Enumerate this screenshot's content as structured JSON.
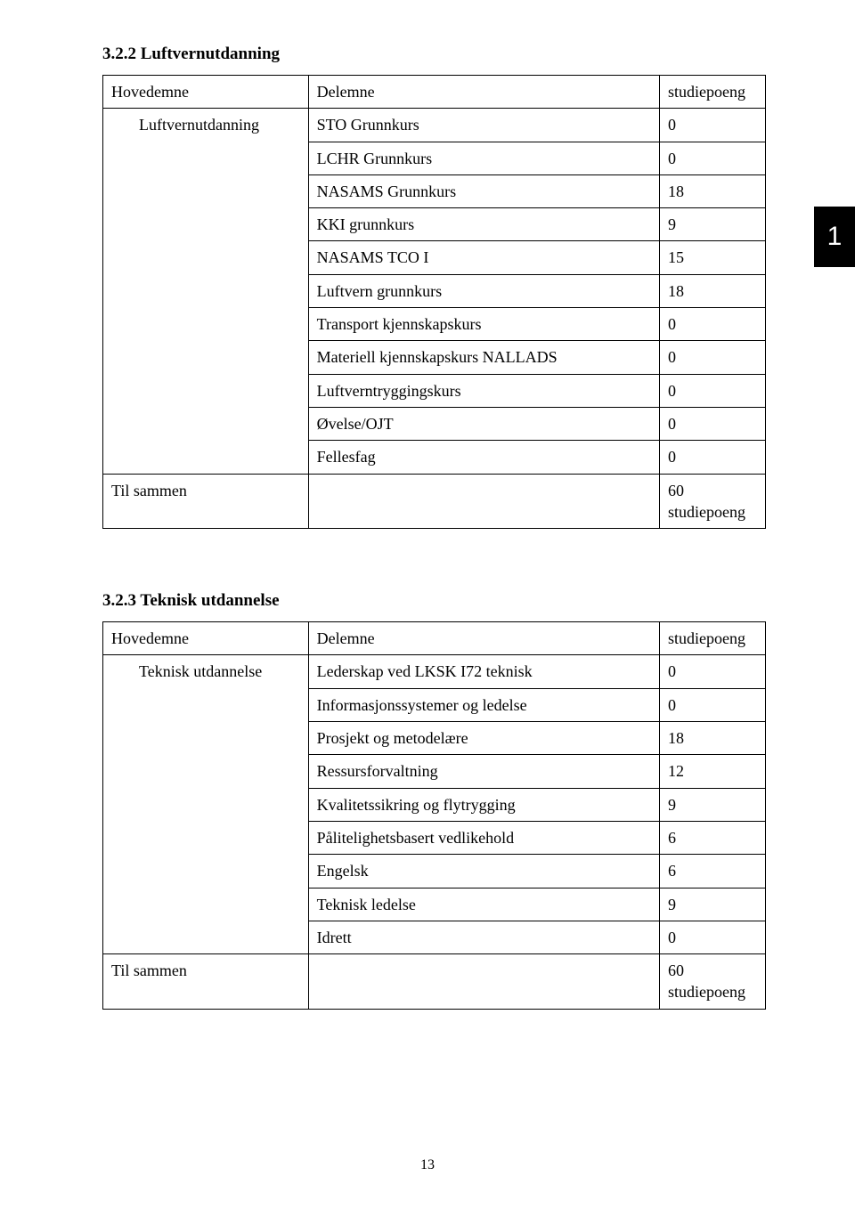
{
  "sideTab": "1",
  "pageNumber": "13",
  "section1": {
    "title": "3.2.2 Luftvernutdanning",
    "headers": {
      "c1": "Hovedemne",
      "c2": "Delemne",
      "c3": "studiepoeng"
    },
    "mainTopic": "Luftvernutdanning",
    "rows": [
      {
        "label": "STO Grunnkurs",
        "value": "0"
      },
      {
        "label": "LCHR Grunnkurs",
        "value": "0"
      },
      {
        "label": "NASAMS Grunnkurs",
        "value": "18"
      },
      {
        "label": "KKI grunnkurs",
        "value": "9"
      },
      {
        "label": "NASAMS TCO I",
        "value": "15"
      },
      {
        "label": "Luftvern grunnkurs",
        "value": "18"
      },
      {
        "label": "Transport kjennskapskurs",
        "value": "0"
      },
      {
        "label": "Materiell kjennskapskurs NALLADS",
        "value": "0"
      },
      {
        "label": "Luftverntryggingskurs",
        "value": "0"
      },
      {
        "label": "Øvelse/OJT",
        "value": "0"
      },
      {
        "label": "Fellesfag",
        "value": "0"
      }
    ],
    "totalLabel": "Til sammen",
    "totalValue": "60 studiepoeng"
  },
  "section2": {
    "title": "3.2.3 Teknisk utdannelse",
    "headers": {
      "c1": "Hovedemne",
      "c2": "Delemne",
      "c3": "studiepoeng"
    },
    "mainTopic": "Teknisk utdannelse",
    "rows": [
      {
        "label": "Lederskap ved LKSK I72 teknisk",
        "value": "0"
      },
      {
        "label": "Informasjonssystemer og ledelse",
        "value": "0"
      },
      {
        "label": "Prosjekt og metodelære",
        "value": "18"
      },
      {
        "label": "Ressursforvaltning",
        "value": "12"
      },
      {
        "label": "Kvalitetssikring og flytrygging",
        "value": "9"
      },
      {
        "label": "Pålitelighetsbasert vedlikehold",
        "value": "6"
      },
      {
        "label": "Engelsk",
        "value": "6"
      },
      {
        "label": "Teknisk ledelse",
        "value": "9"
      },
      {
        "label": "Idrett",
        "value": "0"
      }
    ],
    "totalLabel": "Til sammen",
    "totalValue": "60 studiepoeng"
  }
}
